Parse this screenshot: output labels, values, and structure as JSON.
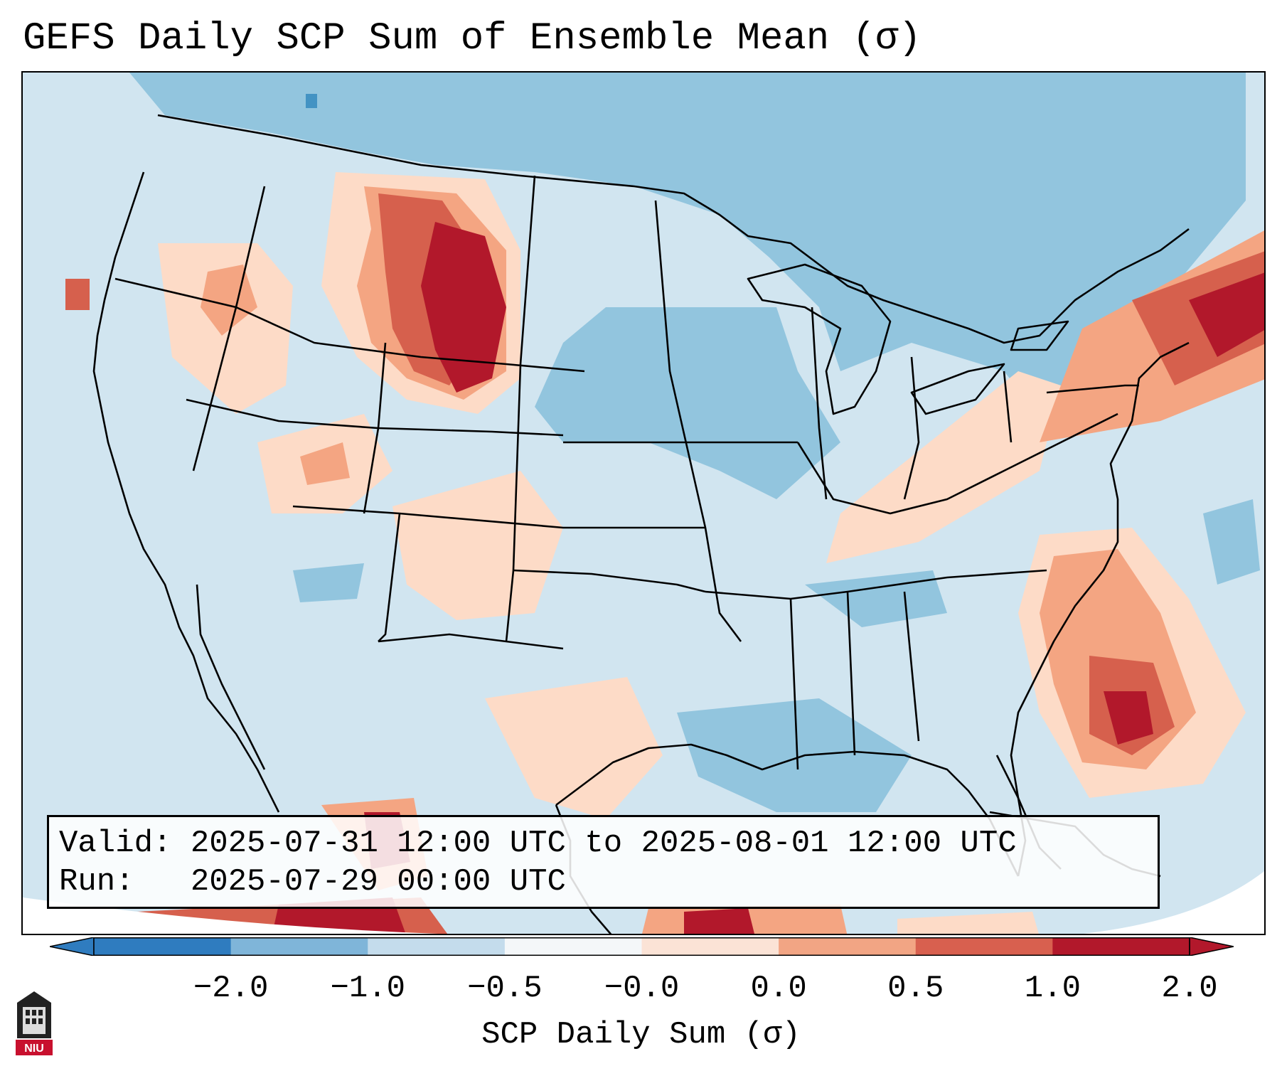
{
  "title": "GEFS Daily SCP Sum of Ensemble Mean (σ)",
  "info": {
    "valid_label": "Valid:",
    "valid_value": "2025-07-31 12:00 UTC to 2025-08-01 12:00 UTC",
    "run_label": "Run:",
    "run_value": "2025-07-29 00:00 UTC"
  },
  "colorbar": {
    "label": "SCP Daily Sum (σ)",
    "ticks": [
      "−2.0",
      "−1.0",
      "−0.5",
      "−0.0",
      "0.0",
      "0.5",
      "1.0",
      "2.0"
    ],
    "colors": [
      "#2f7cbf",
      "#7fb5d9",
      "#c4dcec",
      "#f4f7f9",
      "#fbe3d6",
      "#f2a584",
      "#d8604f",
      "#b2182b"
    ],
    "extend": "both"
  },
  "logo": {
    "text": "NIU"
  },
  "palette": {
    "background_field": "#d1e5f0",
    "light_blue": "#92c5de",
    "mid_blue": "#4393c3",
    "light_red": "#fddbc7",
    "mid_red": "#f4a582",
    "red": "#d6604d",
    "dark_red": "#b2182b"
  }
}
